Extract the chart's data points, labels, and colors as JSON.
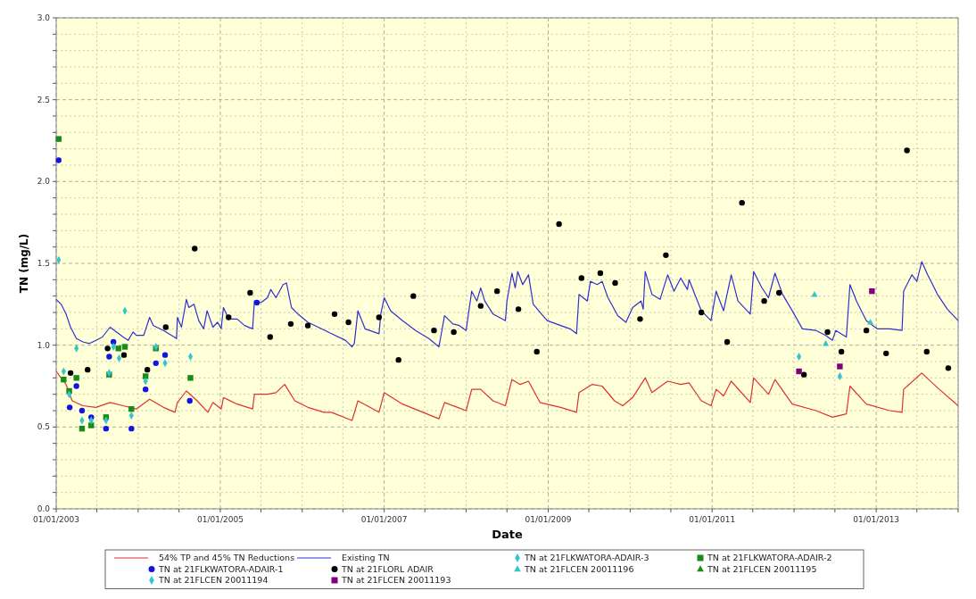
{
  "chart_data": {
    "type": "scatter",
    "xlabel": "Date",
    "ylabel": "TN (mg/L)",
    "xlim": [
      "2003-01-01",
      "2014-01-01"
    ],
    "ylim": [
      0,
      3
    ],
    "xticks": [
      {
        "value": "2003-01-01",
        "label": "01/01/2003"
      },
      {
        "value": "2003-07-01",
        "label": null
      },
      {
        "value": "2004-01-01",
        "label": null
      },
      {
        "value": "2004-07-01",
        "label": null
      },
      {
        "value": "2005-01-01",
        "label": "01/01/2005"
      },
      {
        "value": "2005-07-01",
        "label": null
      },
      {
        "value": "2006-01-01",
        "label": null
      },
      {
        "value": "2006-07-01",
        "label": null
      },
      {
        "value": "2007-01-01",
        "label": "01/01/2007"
      },
      {
        "value": "2007-07-01",
        "label": null
      },
      {
        "value": "2008-01-01",
        "label": null
      },
      {
        "value": "2008-07-01",
        "label": null
      },
      {
        "value": "2009-01-01",
        "label": "01/01/2009"
      },
      {
        "value": "2009-07-01",
        "label": null
      },
      {
        "value": "2010-01-01",
        "label": null
      },
      {
        "value": "2010-07-01",
        "label": null
      },
      {
        "value": "2011-01-01",
        "label": "01/01/2011"
      },
      {
        "value": "2011-07-01",
        "label": null
      },
      {
        "value": "2012-01-01",
        "label": null
      },
      {
        "value": "2012-07-01",
        "label": null
      },
      {
        "value": "2013-01-01",
        "label": "01/01/2013"
      },
      {
        "value": "2013-07-01",
        "label": null
      },
      {
        "value": "2014-01-01",
        "label": null
      }
    ],
    "yticks": [
      {
        "value": 0,
        "label": "0.0"
      },
      {
        "value": 0.1,
        "label": null
      },
      {
        "value": 0.2,
        "label": null
      },
      {
        "value": 0.3,
        "label": null
      },
      {
        "value": 0.4,
        "label": null
      },
      {
        "value": 0.5,
        "label": "0.5"
      },
      {
        "value": 0.6,
        "label": null
      },
      {
        "value": 0.7,
        "label": null
      },
      {
        "value": 0.8,
        "label": null
      },
      {
        "value": 0.9,
        "label": null
      },
      {
        "value": 1,
        "label": "1.0"
      },
      {
        "value": 1.1,
        "label": null
      },
      {
        "value": 1.2,
        "label": null
      },
      {
        "value": 1.3,
        "label": null
      },
      {
        "value": 1.4,
        "label": null
      },
      {
        "value": 1.5,
        "label": "1.5"
      },
      {
        "value": 1.6,
        "label": null
      },
      {
        "value": 1.7,
        "label": null
      },
      {
        "value": 1.8,
        "label": null
      },
      {
        "value": 1.9,
        "label": null
      },
      {
        "value": 2,
        "label": "2.0"
      },
      {
        "value": 2.1,
        "label": null
      },
      {
        "value": 2.2,
        "label": null
      },
      {
        "value": 2.3,
        "label": null
      },
      {
        "value": 2.4,
        "label": null
      },
      {
        "value": 2.5,
        "label": "2.5"
      },
      {
        "value": 2.6,
        "label": null
      },
      {
        "value": 2.7,
        "label": null
      },
      {
        "value": 2.8,
        "label": null
      },
      {
        "value": 2.9,
        "label": null
      },
      {
        "value": 3,
        "label": "3.0"
      }
    ],
    "grid": true,
    "legend": "bottom",
    "series": [
      {
        "name": "54% TP and 45% TN Reductions",
        "type": "line",
        "color": "#e03030",
        "line_style": "solid",
        "x": [
          "2003-01-01",
          "2003-02-14",
          "2003-03-13",
          "2003-04-30",
          "2003-06-27",
          "2003-08-29",
          "2003-10-26",
          "2003-12-24",
          "2004-02-21",
          "2004-04-23",
          "2004-06-13",
          "2004-06-24",
          "2004-08-03",
          "2004-09-20",
          "2004-11-07",
          "2004-11-29",
          "2005-01-05",
          "2005-01-15",
          "2005-03-17",
          "2005-05-25",
          "2005-06-02",
          "2005-07-30",
          "2005-09-06",
          "2005-10-15",
          "2005-11-29",
          "2006-01-26",
          "2006-04-08",
          "2006-05-11",
          "2006-08-11",
          "2006-09-06",
          "2006-12-09",
          "2007-01-01",
          "2007-03-24",
          "2007-09-02",
          "2007-09-27",
          "2008-01-01",
          "2008-01-26",
          "2008-03-06",
          "2008-04-30",
          "2008-06-24",
          "2008-07-23",
          "2008-08-29",
          "2008-10-05",
          "2008-11-25",
          "2009-02-25",
          "2009-05-07",
          "2009-05-18",
          "2009-07-15",
          "2009-08-29",
          "2009-10-23",
          "2009-11-29",
          "2010-01-12",
          "2010-03-09",
          "2010-04-08",
          "2010-06-17",
          "2010-08-14",
          "2010-09-20",
          "2010-11-14",
          "2010-12-27",
          "2011-01-19",
          "2011-02-21",
          "2011-03-27",
          "2011-06-20",
          "2011-07-05",
          "2011-09-09",
          "2011-10-08",
          "2011-12-24",
          "2012-04-08",
          "2012-06-20",
          "2012-08-21",
          "2012-09-06",
          "2012-11-18",
          "2013-03-02",
          "2013-04-26",
          "2013-05-03",
          "2013-07-23",
          "2013-10-01",
          "2014-01-01"
        ],
        "values": [
          0.84,
          0.76,
          0.66,
          0.63,
          0.62,
          0.65,
          0.63,
          0.61,
          0.67,
          0.62,
          0.59,
          0.65,
          0.72,
          0.66,
          0.59,
          0.65,
          0.61,
          0.68,
          0.64,
          0.61,
          0.7,
          0.7,
          0.71,
          0.76,
          0.66,
          0.62,
          0.59,
          0.59,
          0.54,
          0.66,
          0.59,
          0.71,
          0.64,
          0.55,
          0.65,
          0.6,
          0.73,
          0.73,
          0.66,
          0.63,
          0.79,
          0.76,
          0.78,
          0.65,
          0.62,
          0.59,
          0.71,
          0.76,
          0.75,
          0.66,
          0.63,
          0.68,
          0.8,
          0.71,
          0.78,
          0.76,
          0.77,
          0.66,
          0.63,
          0.73,
          0.69,
          0.78,
          0.65,
          0.8,
          0.7,
          0.79,
          0.64,
          0.6,
          0.56,
          0.58,
          0.75,
          0.64,
          0.6,
          0.59,
          0.73,
          0.83,
          0.74,
          0.63
        ]
      },
      {
        "name": "Existing TN",
        "type": "line",
        "color": "#3030d0",
        "line_style": "solid",
        "x": [
          "2003-01-01",
          "2003-01-23",
          "2003-02-14",
          "2003-03-06",
          "2003-04-01",
          "2003-04-30",
          "2003-05-29",
          "2003-06-27",
          "2003-07-26",
          "2003-08-29",
          "2003-09-27",
          "2003-10-26",
          "2003-11-18",
          "2003-12-09",
          "2003-12-24",
          "2004-01-26",
          "2004-02-21",
          "2004-03-09",
          "2004-04-23",
          "2004-05-29",
          "2004-06-20",
          "2004-06-24",
          "2004-07-12",
          "2004-08-03",
          "2004-08-14",
          "2004-09-06",
          "2004-09-27",
          "2004-10-19",
          "2004-11-03",
          "2004-11-29",
          "2004-12-20",
          "2005-01-05",
          "2005-01-15",
          "2005-02-07",
          "2005-03-17",
          "2005-04-19",
          "2005-05-25",
          "2005-06-02",
          "2005-07-01",
          "2005-07-30",
          "2005-08-14",
          "2005-09-06",
          "2005-10-08",
          "2005-10-23",
          "2005-11-14",
          "2005-12-13",
          "2006-01-26",
          "2006-03-13",
          "2006-05-11",
          "2006-07-12",
          "2006-08-11",
          "2006-08-21",
          "2006-09-06",
          "2006-10-08",
          "2006-12-09",
          "2006-12-17",
          "2007-01-01",
          "2007-01-30",
          "2007-03-24",
          "2007-05-21",
          "2007-07-19",
          "2007-09-02",
          "2007-09-27",
          "2007-11-03",
          "2007-12-02",
          "2008-01-01",
          "2008-01-26",
          "2008-02-18",
          "2008-03-06",
          "2008-03-24",
          "2008-04-30",
          "2008-06-24",
          "2008-07-01",
          "2008-07-23",
          "2008-08-07",
          "2008-08-18",
          "2008-09-09",
          "2008-10-05",
          "2008-10-26",
          "2008-12-27",
          "2009-02-25",
          "2009-04-08",
          "2009-05-07",
          "2009-05-18",
          "2009-06-24",
          "2009-07-08",
          "2009-08-07",
          "2009-08-29",
          "2009-09-24",
          "2009-11-07",
          "2009-12-13",
          "2010-01-12",
          "2010-02-18",
          "2010-02-28",
          "2010-03-09",
          "2010-04-08",
          "2010-05-14",
          "2010-06-17",
          "2010-07-15",
          "2010-08-14",
          "2010-09-13",
          "2010-09-20",
          "2010-11-14",
          "2010-12-27",
          "2011-01-19",
          "2011-02-21",
          "2011-03-27",
          "2011-04-26",
          "2011-06-20",
          "2011-07-05",
          "2011-08-11",
          "2011-09-09",
          "2011-10-08",
          "2011-11-11",
          "2011-12-24",
          "2012-02-07",
          "2012-04-08",
          "2012-05-21",
          "2012-06-20",
          "2012-07-05",
          "2012-08-21",
          "2012-09-06",
          "2012-10-05",
          "2012-11-18",
          "2013-01-05",
          "2013-03-02",
          "2013-04-26",
          "2013-05-03",
          "2013-06-09",
          "2013-07-01",
          "2013-07-23",
          "2013-08-18",
          "2013-10-01",
          "2013-11-14",
          "2014-01-01"
        ],
        "values": [
          1.28,
          1.25,
          1.19,
          1.11,
          1.04,
          1.02,
          1.01,
          1.03,
          1.05,
          1.11,
          1.08,
          1.05,
          1.03,
          1.08,
          1.06,
          1.06,
          1.17,
          1.12,
          1.09,
          1.06,
          1.04,
          1.17,
          1.11,
          1.28,
          1.23,
          1.25,
          1.15,
          1.1,
          1.21,
          1.11,
          1.14,
          1.1,
          1.23,
          1.16,
          1.16,
          1.12,
          1.1,
          1.27,
          1.26,
          1.29,
          1.34,
          1.29,
          1.37,
          1.38,
          1.23,
          1.19,
          1.14,
          1.11,
          1.07,
          1.03,
          0.99,
          1.01,
          1.21,
          1.1,
          1.07,
          1.19,
          1.29,
          1.21,
          1.15,
          1.09,
          1.04,
          0.99,
          1.18,
          1.13,
          1.12,
          1.09,
          1.33,
          1.27,
          1.35,
          1.27,
          1.19,
          1.15,
          1.27,
          1.44,
          1.35,
          1.45,
          1.37,
          1.43,
          1.25,
          1.15,
          1.12,
          1.1,
          1.07,
          1.31,
          1.27,
          1.39,
          1.37,
          1.39,
          1.29,
          1.18,
          1.14,
          1.23,
          1.27,
          1.22,
          1.45,
          1.31,
          1.28,
          1.43,
          1.33,
          1.41,
          1.34,
          1.4,
          1.21,
          1.15,
          1.33,
          1.21,
          1.43,
          1.27,
          1.19,
          1.45,
          1.35,
          1.29,
          1.44,
          1.31,
          1.21,
          1.1,
          1.09,
          1.06,
          1.03,
          1.09,
          1.05,
          1.37,
          1.27,
          1.15,
          1.1,
          1.1,
          1.09,
          1.33,
          1.43,
          1.39,
          1.51,
          1.43,
          1.31,
          1.22,
          1.15
        ]
      },
      {
        "name": "TN at 21FLKWATORA-ADAIR-3",
        "color": "#33c6cc",
        "marker": "diamond",
        "x": [
          "2003-01-12",
          "2003-02-03",
          "2003-02-28",
          "2003-04-01",
          "2003-04-26",
          "2003-06-06",
          "2003-08-11",
          "2003-08-25",
          "2003-09-13",
          "2003-10-08",
          "2003-11-03",
          "2003-12-02",
          "2004-02-03",
          "2004-03-20",
          "2004-04-30",
          "2004-08-21"
        ],
        "values": [
          1.52,
          0.84,
          0.7,
          0.98,
          0.54,
          0.54,
          0.54,
          0.83,
          0.99,
          0.92,
          1.21,
          0.57,
          0.78,
          0.99,
          0.89,
          0.93
        ]
      },
      {
        "name": "TN at 21FLKWATORA-ADAIR-2",
        "color": "#1a8a1a",
        "marker": "square",
        "x": [
          "2003-01-12",
          "2003-02-03",
          "2003-02-28",
          "2003-04-01",
          "2003-04-26",
          "2003-06-06",
          "2003-08-11",
          "2003-08-25",
          "2003-10-05",
          "2003-11-03",
          "2003-12-02",
          "2004-02-03",
          "2004-03-20",
          "2004-08-21"
        ],
        "values": [
          2.26,
          0.79,
          0.72,
          0.8,
          0.49,
          0.51,
          0.56,
          0.82,
          0.98,
          0.99,
          0.61,
          0.81,
          0.98,
          0.8
        ]
      },
      {
        "name": "TN at 21FLKWATORA-ADAIR-1",
        "color": "#1414e0",
        "marker": "circle",
        "x": [
          "2003-01-12",
          "2003-03-02",
          "2003-04-01",
          "2003-04-26",
          "2003-06-06",
          "2003-08-11",
          "2003-08-25",
          "2003-09-13",
          "2003-12-02",
          "2004-02-03",
          "2004-03-20",
          "2004-04-30",
          "2004-08-18",
          "2005-06-13"
        ],
        "values": [
          2.13,
          0.62,
          0.75,
          0.6,
          0.56,
          0.49,
          0.93,
          1.02,
          0.49,
          0.73,
          0.89,
          0.94,
          0.66,
          1.26
        ]
      },
      {
        "name": "TN at 21FLORL ADAIR",
        "color": "#000000",
        "marker": "circle",
        "x": [
          "2003-03-06",
          "2003-05-21",
          "2003-08-18",
          "2003-10-30",
          "2004-02-11",
          "2004-05-03",
          "2004-09-09",
          "2005-02-07",
          "2005-05-14",
          "2005-08-11",
          "2005-11-11",
          "2006-01-26",
          "2006-05-25",
          "2006-07-26",
          "2006-12-09",
          "2007-03-06",
          "2007-05-11",
          "2007-08-11",
          "2007-11-07",
          "2008-03-06",
          "2008-05-18",
          "2008-08-21",
          "2008-11-11",
          "2009-02-18",
          "2009-05-29",
          "2009-08-21",
          "2009-10-26",
          "2010-02-14",
          "2010-06-09",
          "2010-11-14",
          "2011-03-09",
          "2011-05-14",
          "2011-08-21",
          "2011-10-26",
          "2012-02-14",
          "2012-05-29",
          "2012-07-30",
          "2012-11-18",
          "2013-02-14",
          "2013-05-18",
          "2013-08-14",
          "2013-11-18"
        ],
        "values": [
          0.83,
          0.85,
          0.98,
          0.94,
          0.85,
          1.11,
          1.59,
          1.17,
          1.32,
          1.05,
          1.13,
          1.12,
          1.19,
          1.14,
          1.17,
          0.91,
          1.3,
          1.09,
          1.08,
          1.24,
          1.33,
          1.22,
          0.96,
          1.74,
          1.41,
          1.44,
          1.38,
          1.16,
          1.55,
          1.2,
          1.02,
          1.87,
          1.27,
          1.32,
          0.82,
          1.08,
          0.96,
          1.09,
          0.95,
          2.19,
          0.96,
          0.86
        ]
      },
      {
        "name": "TN at 21FLCEN 20011196",
        "color": "#33c6cc",
        "marker": "triangle",
        "x": [
          "2012-04-01",
          "2012-05-21",
          "2012-12-06"
        ],
        "values": [
          1.31,
          1.01,
          1.14
        ]
      },
      {
        "name": "TN at 21FLCEN 20011195",
        "color": "#1a8a1a",
        "marker": "triangle"
      },
      {
        "name": "TN at 21FLCEN 20011194",
        "color": "#33c6cc",
        "marker": "diamond",
        "x": [
          "2012-01-23",
          "2012-07-23"
        ],
        "values": [
          0.93,
          0.81
        ]
      },
      {
        "name": "TN at 21FLCEN 20011193",
        "color": "#800080",
        "marker": "square",
        "x": [
          "2012-01-23",
          "2012-07-23",
          "2012-12-13"
        ],
        "values": [
          0.84,
          0.87,
          1.33
        ]
      }
    ]
  }
}
